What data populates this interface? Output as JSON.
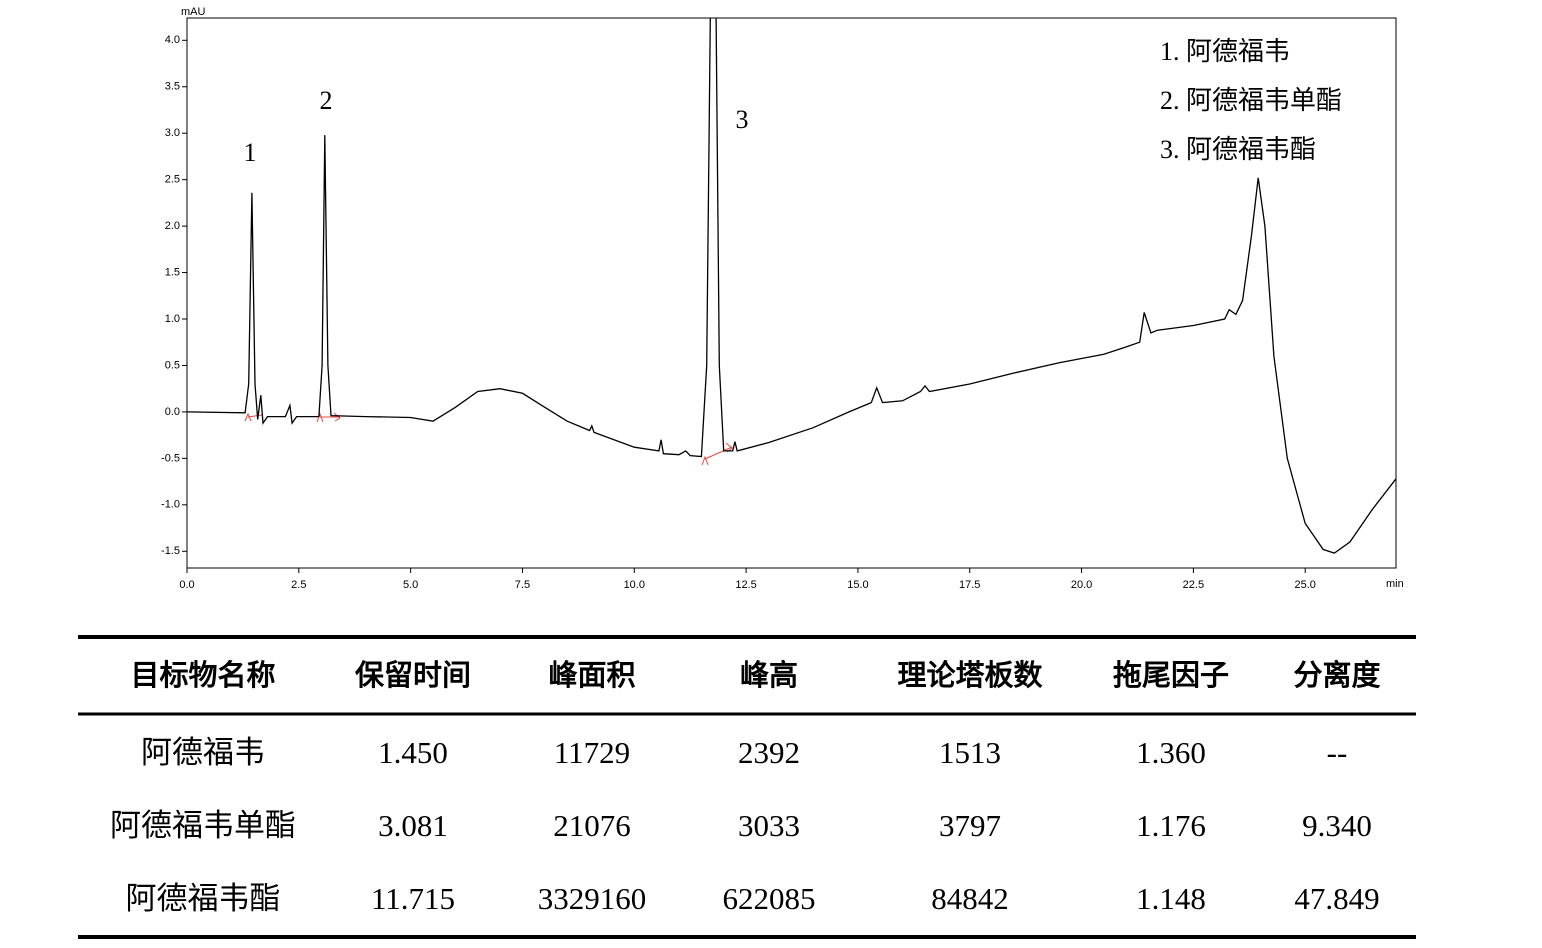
{
  "chart_data": {
    "type": "line",
    "y_unit": "mAU",
    "x_unit": "min",
    "xlim": [
      0,
      27.03
    ],
    "ylim": [
      -1.68,
      4.24
    ],
    "xticks": [
      {
        "value": 0,
        "label": "0.0"
      },
      {
        "value": 2.5,
        "label": "2.5"
      },
      {
        "value": 5,
        "label": "5.0"
      },
      {
        "value": 7.5,
        "label": "7.5"
      },
      {
        "value": 10,
        "label": "10.0"
      },
      {
        "value": 12.5,
        "label": "12.5"
      },
      {
        "value": 15,
        "label": "15.0"
      },
      {
        "value": 17.5,
        "label": "17.5"
      },
      {
        "value": 20,
        "label": "20.0"
      },
      {
        "value": 22.5,
        "label": "22.5"
      },
      {
        "value": 25,
        "label": "25.0"
      }
    ],
    "yticks": [
      {
        "value": -1.5,
        "label": "-1.5"
      },
      {
        "value": -1,
        "label": "-1.0"
      },
      {
        "value": -0.5,
        "label": "-0.5"
      },
      {
        "value": 0,
        "label": "0.0"
      },
      {
        "value": 0.5,
        "label": "0.5"
      },
      {
        "value": 1,
        "label": "1.0"
      },
      {
        "value": 1.5,
        "label": "1.5"
      },
      {
        "value": 2,
        "label": "2.0"
      },
      {
        "value": 2.5,
        "label": "2.5"
      },
      {
        "value": 3,
        "label": "3.0"
      },
      {
        "value": 3.5,
        "label": "3.5"
      },
      {
        "value": 4,
        "label": "4.0"
      }
    ],
    "annotations": [
      "1",
      "2",
      "3"
    ],
    "legend_items": [
      "1.  阿德福韦",
      "2.  阿德福韦单酯",
      "3.  阿德福韦酯"
    ],
    "color": "#000000",
    "x": [
      0,
      1.3,
      1.38,
      1.45,
      1.52,
      1.58,
      1.65,
      1.7,
      1.8,
      2.2,
      2.3,
      2.35,
      2.45,
      2.95,
      3.02,
      3.08,
      3.15,
      3.22,
      4.0,
      5.0,
      5.5,
      6.0,
      6.5,
      7.0,
      7.5,
      8.0,
      8.5,
      9.0,
      9.05,
      9.1,
      10.0,
      10.55,
      10.6,
      10.65,
      11.0,
      11.15,
      11.25,
      11.5,
      11.62,
      11.7,
      null,
      11.83,
      11.9,
      12.0,
      12.2,
      12.25,
      12.3,
      13.0,
      14.0,
      14.8,
      15.3,
      15.42,
      15.55,
      16.0,
      16.4,
      16.5,
      16.6,
      17.5,
      18.5,
      19.5,
      20.5,
      21.0,
      21.3,
      21.4,
      21.55,
      21.7,
      22.5,
      23.2,
      23.3,
      23.45,
      23.6,
      23.8,
      23.95,
      24.1,
      24.3,
      24.6,
      25.0,
      25.4,
      25.65,
      26.0,
      26.5,
      27.03
    ],
    "values": [
      0,
      -0.01,
      0.3,
      2.36,
      0.3,
      -0.08,
      0.18,
      -0.12,
      -0.05,
      -0.05,
      0.07,
      -0.12,
      -0.05,
      -0.05,
      0.5,
      2.98,
      0.5,
      -0.04,
      -0.05,
      -0.06,
      -0.1,
      0.05,
      0.22,
      0.25,
      0.2,
      0.05,
      -0.1,
      -0.2,
      -0.15,
      -0.22,
      -0.38,
      -0.42,
      -0.3,
      -0.45,
      -0.46,
      -0.42,
      -0.47,
      -0.48,
      0.5,
      4.24,
      null,
      4.24,
      0.5,
      -0.42,
      -0.42,
      -0.32,
      -0.42,
      -0.33,
      -0.17,
      0,
      0.1,
      0.26,
      0.1,
      0.12,
      0.22,
      0.28,
      0.22,
      0.3,
      0.42,
      0.53,
      0.62,
      0.7,
      0.75,
      1.07,
      0.85,
      0.88,
      0.93,
      1.0,
      1.1,
      1.05,
      1.2,
      1.9,
      2.52,
      2.0,
      0.6,
      -0.5,
      -1.2,
      -1.48,
      -1.52,
      -1.4,
      -1.05,
      -0.72
    ]
  },
  "table": {
    "header": [
      "目标物名称",
      "保留时间",
      "峰面积",
      "峰高",
      "理论塔板数",
      "拖尾因子",
      "分离度"
    ],
    "rows": [
      [
        "阿德福韦",
        "1.450",
        "11729",
        "2392",
        "1513",
        "1.360",
        "--"
      ],
      [
        "阿德福韦单酯",
        "3.081",
        "21076",
        "3033",
        "3797",
        "1.176",
        "9.340"
      ],
      [
        "阿德福韦酯",
        "11.715",
        "3329160",
        "622085",
        "84842",
        "1.148",
        "47.849"
      ]
    ]
  }
}
